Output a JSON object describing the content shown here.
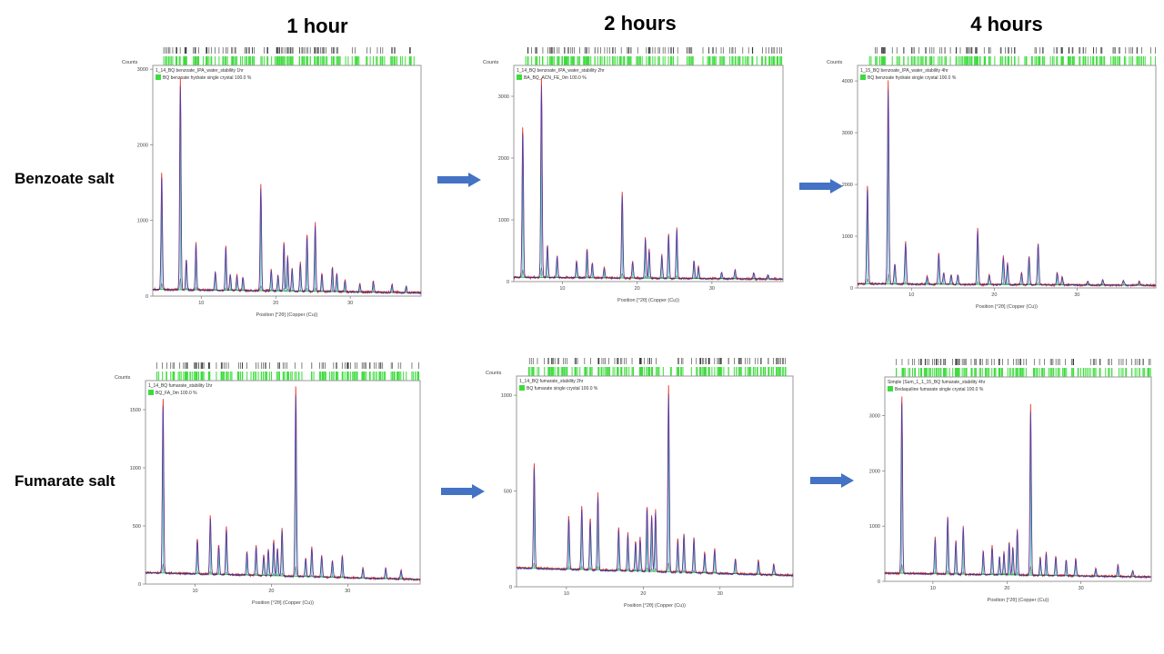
{
  "columns": [
    "1 hour",
    "2 hours",
    "4 hours"
  ],
  "rows": [
    "Benzoate salt",
    "Fumarate salt"
  ],
  "colors": {
    "observed": "#e8362b",
    "calculated": "#1f3fd6",
    "difference": "#1a1a1a",
    "reference_stick": "#22c55e",
    "reference_band": "#3ddc3d",
    "background_fit": "#2ecc40",
    "arrow": "#4472c4",
    "frame": "#9a9a9a"
  },
  "chart_data": [
    {
      "type": "line",
      "row": "Benzoate salt",
      "column": "1 hour",
      "ylabel": "Counts",
      "xlabel": "Position [°2θ] (Copper (Cu))",
      "legend": [
        "1_14_BQ benzoate_IPA_water_stability 1hr",
        "BQ benzoate hydrate single crystal 100.0 %"
      ],
      "xlim": [
        3.5,
        39.5
      ],
      "ylim": [
        0,
        3050
      ],
      "xticks": [
        10,
        20,
        30
      ],
      "yticks": [
        0,
        1000,
        2000,
        3000
      ],
      "ytick_labels": [
        "0",
        "1000",
        "2000",
        "3000"
      ],
      "baseline": [
        [
          3.5,
          90
        ],
        [
          39.5,
          45
        ]
      ],
      "peaks": [
        [
          4.7,
          1650
        ],
        [
          7.2,
          2900
        ],
        [
          8.0,
          500
        ],
        [
          9.3,
          720
        ],
        [
          11.9,
          330
        ],
        [
          13.3,
          680
        ],
        [
          13.9,
          300
        ],
        [
          14.8,
          280
        ],
        [
          15.6,
          260
        ],
        [
          18.0,
          1480
        ],
        [
          19.4,
          360
        ],
        [
          20.3,
          280
        ],
        [
          21.1,
          720
        ],
        [
          21.6,
          530
        ],
        [
          22.2,
          380
        ],
        [
          23.3,
          450
        ],
        [
          24.2,
          830
        ],
        [
          25.3,
          970
        ],
        [
          26.2,
          300
        ],
        [
          27.6,
          380
        ],
        [
          28.2,
          310
        ],
        [
          29.3,
          210
        ],
        [
          31.3,
          160
        ],
        [
          33.1,
          200
        ],
        [
          35.6,
          160
        ],
        [
          37.5,
          130
        ]
      ]
    },
    {
      "type": "line",
      "row": "Benzoate salt",
      "column": "2 hours",
      "ylabel": "Counts",
      "xlabel": "Position [°2θ] (Copper (Cu))",
      "legend": [
        "1_14_BQ benzoate_IPA_water_stability 2hr",
        "BA_BQ_ACN_FE_0m 100.0 %"
      ],
      "xlim": [
        3.5,
        39.5
      ],
      "ylim": [
        0,
        3500
      ],
      "xticks": [
        10,
        20,
        30
      ],
      "yticks": [
        0,
        1000,
        2000,
        3000
      ],
      "ytick_labels": [
        "0",
        "1000",
        "2000",
        "3000"
      ],
      "baseline": [
        [
          3.5,
          70
        ],
        [
          39.5,
          40
        ]
      ],
      "peaks": [
        [
          4.7,
          2550
        ],
        [
          7.2,
          3300
        ],
        [
          8.0,
          600
        ],
        [
          9.3,
          420
        ],
        [
          11.9,
          330
        ],
        [
          13.3,
          530
        ],
        [
          14.0,
          300
        ],
        [
          15.6,
          230
        ],
        [
          18.0,
          1450
        ],
        [
          19.4,
          330
        ],
        [
          21.1,
          720
        ],
        [
          21.6,
          520
        ],
        [
          23.3,
          440
        ],
        [
          24.2,
          790
        ],
        [
          25.3,
          880
        ],
        [
          27.6,
          350
        ],
        [
          28.2,
          240
        ],
        [
          31.3,
          150
        ],
        [
          33.1,
          200
        ],
        [
          35.6,
          150
        ],
        [
          37.5,
          120
        ]
      ]
    },
    {
      "type": "line",
      "row": "Benzoate salt",
      "column": "4 hours",
      "ylabel": "Counts",
      "xlabel": "Position [°2θ] (Copper (Cu))",
      "legend": [
        "1_15_BQ benzoate_IPA_water_stability 4hr",
        "BQ benzoate hydrate single crystal 100.0 %"
      ],
      "xlim": [
        3.5,
        39.5
      ],
      "ylim": [
        0,
        4300
      ],
      "xticks": [
        10,
        20,
        30
      ],
      "yticks": [
        0,
        1000,
        2000,
        3000,
        4000
      ],
      "ytick_labels": [
        "0",
        "1000",
        "2000",
        "3000",
        "4000"
      ],
      "baseline": [
        [
          3.5,
          80
        ],
        [
          39.5,
          50
        ]
      ],
      "peaks": [
        [
          4.7,
          2000
        ],
        [
          7.2,
          4000
        ],
        [
          8.0,
          480
        ],
        [
          9.3,
          900
        ],
        [
          11.9,
          220
        ],
        [
          13.3,
          680
        ],
        [
          13.9,
          300
        ],
        [
          14.8,
          250
        ],
        [
          15.6,
          250
        ],
        [
          18.0,
          1150
        ],
        [
          19.4,
          260
        ],
        [
          21.1,
          620
        ],
        [
          21.6,
          480
        ],
        [
          23.3,
          300
        ],
        [
          24.2,
          620
        ],
        [
          25.3,
          880
        ],
        [
          27.6,
          300
        ],
        [
          28.2,
          210
        ],
        [
          31.3,
          140
        ],
        [
          33.1,
          170
        ],
        [
          35.6,
          150
        ],
        [
          37.5,
          120
        ]
      ]
    },
    {
      "type": "line",
      "row": "Fumarate salt",
      "column": "1 hour",
      "ylabel": "Counts",
      "xlabel": "Position [°2θ] (Copper (Cu))",
      "legend": [
        "1_14_BQ fumarate_stability 1hr",
        "BQ_FA_0m 100.0 %"
      ],
      "xlim": [
        3.5,
        39.5
      ],
      "ylim": [
        0,
        1750
      ],
      "xticks": [
        10,
        20,
        30
      ],
      "yticks": [
        0,
        500,
        1000,
        1500
      ],
      "ytick_labels": [
        "0",
        "500",
        "1000",
        "1500"
      ],
      "baseline": [
        [
          3.5,
          100
        ],
        [
          39.5,
          40
        ]
      ],
      "peaks": [
        [
          5.8,
          1620
        ],
        [
          10.3,
          390
        ],
        [
          12.0,
          590
        ],
        [
          13.1,
          340
        ],
        [
          14.1,
          490
        ],
        [
          16.8,
          280
        ],
        [
          18.0,
          330
        ],
        [
          19.0,
          250
        ],
        [
          19.6,
          300
        ],
        [
          20.3,
          380
        ],
        [
          20.8,
          320
        ],
        [
          21.4,
          480
        ],
        [
          23.2,
          1700
        ],
        [
          24.5,
          230
        ],
        [
          25.3,
          320
        ],
        [
          26.6,
          250
        ],
        [
          28.0,
          210
        ],
        [
          29.3,
          250
        ],
        [
          32.0,
          140
        ],
        [
          35.0,
          140
        ],
        [
          37.0,
          120
        ]
      ]
    },
    {
      "type": "line",
      "row": "Fumarate salt",
      "column": "2 hours",
      "ylabel": "Counts",
      "xlabel": "Position [°2θ] (Copper (Cu))",
      "legend": [
        "1_14_BQ fumarate_stability 2hr",
        "BQ fumarate single crystal 100.0 %"
      ],
      "xlim": [
        3.5,
        39.5
      ],
      "ylim": [
        0,
        1100
      ],
      "xticks": [
        10,
        20,
        30
      ],
      "yticks": [
        0,
        500,
        1000
      ],
      "ytick_labels": [
        "0",
        "500",
        "1000"
      ],
      "baseline": [
        [
          3.5,
          100
        ],
        [
          39.5,
          60
        ]
      ],
      "peaks": [
        [
          5.8,
          650
        ],
        [
          10.3,
          370
        ],
        [
          12.0,
          420
        ],
        [
          13.1,
          360
        ],
        [
          14.1,
          490
        ],
        [
          16.8,
          310
        ],
        [
          18.0,
          280
        ],
        [
          19.0,
          240
        ],
        [
          19.6,
          260
        ],
        [
          20.5,
          430
        ],
        [
          21.1,
          380
        ],
        [
          21.6,
          400
        ],
        [
          23.3,
          1050
        ],
        [
          24.5,
          250
        ],
        [
          25.3,
          280
        ],
        [
          26.6,
          260
        ],
        [
          28.0,
          180
        ],
        [
          29.3,
          200
        ],
        [
          32.0,
          150
        ],
        [
          35.0,
          140
        ],
        [
          37.0,
          120
        ]
      ]
    },
    {
      "type": "line",
      "row": "Fumarate salt",
      "column": "4 hours",
      "ylabel": "",
      "xlabel": "Position [°2θ] (Copper (Cu))",
      "legend": [
        "Simple (Sum_1_1_15_BQ fumarate_stability 4hr",
        "Bedaquiline fumarate single crystal 100.0 %"
      ],
      "xlim": [
        3.5,
        39.5
      ],
      "ylim": [
        0,
        3700
      ],
      "xticks": [
        10,
        20,
        30
      ],
      "yticks": [
        0,
        1000,
        2000,
        3000
      ],
      "ytick_labels": [
        "0",
        "1000",
        "2000",
        "3000"
      ],
      "baseline": [
        [
          3.5,
          150
        ],
        [
          39.5,
          80
        ]
      ],
      "peaks": [
        [
          5.8,
          3400
        ],
        [
          10.3,
          800
        ],
        [
          12.0,
          1200
        ],
        [
          13.1,
          740
        ],
        [
          14.1,
          1000
        ],
        [
          16.8,
          560
        ],
        [
          18.0,
          640
        ],
        [
          19.0,
          460
        ],
        [
          19.6,
          540
        ],
        [
          20.3,
          720
        ],
        [
          20.8,
          620
        ],
        [
          21.4,
          960
        ],
        [
          23.2,
          3200
        ],
        [
          24.5,
          440
        ],
        [
          25.3,
          520
        ],
        [
          26.6,
          460
        ],
        [
          28.0,
          400
        ],
        [
          29.3,
          420
        ],
        [
          32.0,
          240
        ],
        [
          35.0,
          300
        ],
        [
          37.0,
          200
        ]
      ]
    }
  ]
}
